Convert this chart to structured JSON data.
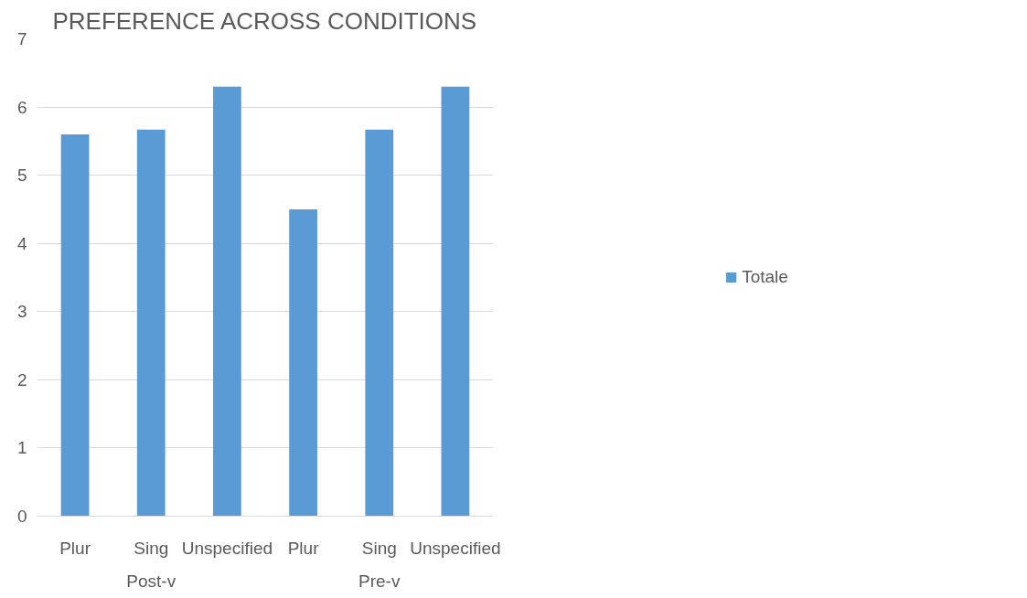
{
  "chart_data": {
    "type": "bar",
    "title": "PREFERENCE ACROSS CONDITIONS",
    "categories": [
      "Plur",
      "Sing",
      "Unspecified",
      "Plur",
      "Sing",
      "Unspecified"
    ],
    "series": [
      {
        "name": "Totale",
        "color": "#5b9bd5",
        "values": [
          5.6,
          5.67,
          6.3,
          4.5,
          5.67,
          6.3
        ]
      }
    ],
    "annotations": [
      "Post-v",
      "Pre-v"
    ],
    "ylim": [
      0,
      7
    ],
    "yticks": [
      0,
      1,
      2,
      3,
      4,
      5,
      6,
      7
    ],
    "grid": "y",
    "legend": "right"
  }
}
